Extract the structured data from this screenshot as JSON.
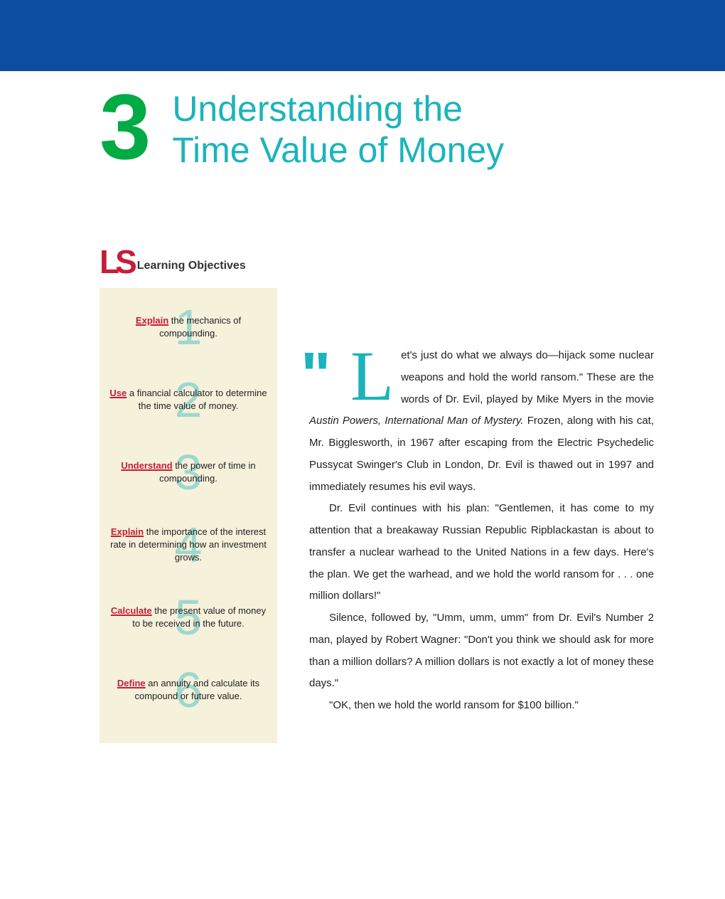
{
  "header": {
    "bar_color": "#0d4da1"
  },
  "chapter": {
    "number": "3",
    "title_line1": "Understanding the",
    "title_line2": "Time Value of Money"
  },
  "learning_objectives": {
    "label": "Learning Objectives",
    "items": [
      {
        "num": "1",
        "verb": "Explain",
        "rest": " the mechanics of compounding."
      },
      {
        "num": "2",
        "verb": "Use",
        "rest": " a financial calculator to determine the time value of money."
      },
      {
        "num": "3",
        "verb": "Understand",
        "rest": " the power of time in compounding."
      },
      {
        "num": "4",
        "verb": "Explain",
        "rest": " the importance of the interest rate in determining how an investment grows."
      },
      {
        "num": "5",
        "verb": "Calculate",
        "rest": " the present value of money to be received in the future."
      },
      {
        "num": "6",
        "verb": "Define",
        "rest": " an annuity and calculate its compound or future value."
      }
    ]
  },
  "body": {
    "dropcap": "L",
    "p1_part1": "et's just do what we always do—hijack some nuclear weapons and hold the world ransom.\" These are the words of Dr. Evil, played by Mike Myers in the movie ",
    "p1_italic": "Austin Powers, International Man of Mystery.",
    "p1_part2": " Frozen, along with his cat, Mr. Bigglesworth, in 1967 after escaping from the Electric Psychedelic Pussycat Swinger's Club in London, Dr. Evil is thawed out in 1997 and immediately resumes his evil ways.",
    "p2": "Dr. Evil continues with his plan: \"Gentlemen, it has come to my attention that a breakaway Russian Republic Ripblackastan is about to transfer a nuclear warhead to the United Nations in a few days. Here's the plan. We get the warhead, and we hold the world ransom for . . . one million dollars!\"",
    "p3": "Silence, followed by, \"Umm, umm, umm\" from Dr. Evil's Number 2 man, played by Robert Wagner: \"Don't you think we should ask for more than a million dollars? A million dollars is not exactly a lot of money these days.\"",
    "p4": "\"OK, then we hold the world ransom for $100 billion.\""
  },
  "colors": {
    "accent_teal": "#1bb4bb",
    "accent_green": "#00aa44",
    "accent_red": "#c41e3a",
    "box_bg": "#f5f1db"
  }
}
